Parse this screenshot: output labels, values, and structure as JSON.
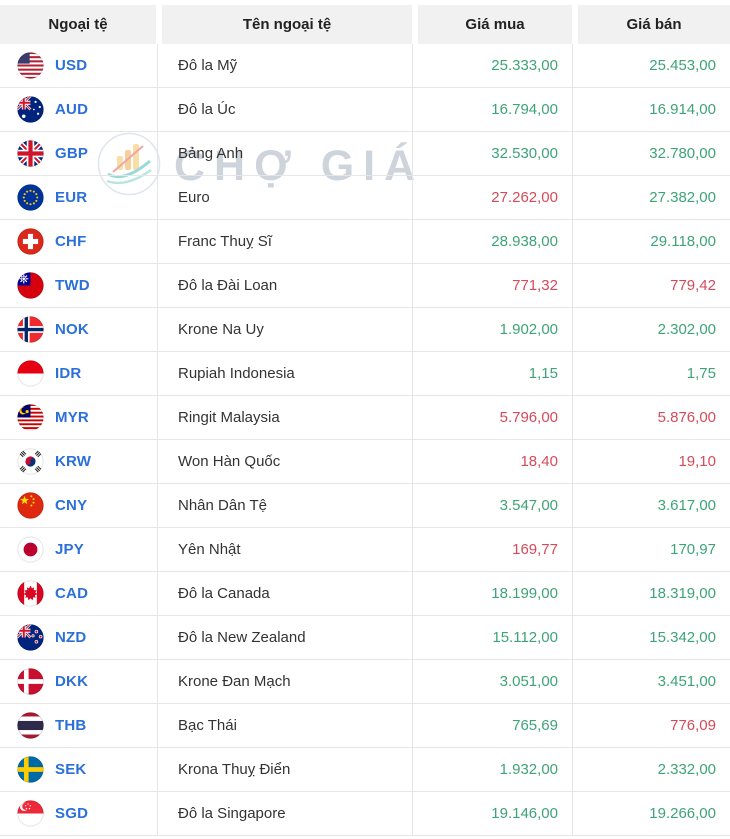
{
  "header": {
    "columns": [
      "Ngoại tệ",
      "Tên ngoại tệ",
      "Giá mua",
      "Giá bán"
    ]
  },
  "watermark": {
    "text": "CHỢ GIÁ"
  },
  "colors": {
    "price_up": "#3ea378",
    "price_down": "#d64a5a",
    "code_link": "#2b70d9",
    "header_bg": "#f1f1f1",
    "border": "#e6e6e6"
  },
  "rows": [
    {
      "code": "USD",
      "name": "Đô la Mỹ",
      "buy": "25.333,00",
      "buy_trend": "up",
      "sell": "25.453,00",
      "sell_trend": "up"
    },
    {
      "code": "AUD",
      "name": "Đô la Úc",
      "buy": "16.794,00",
      "buy_trend": "up",
      "sell": "16.914,00",
      "sell_trend": "up"
    },
    {
      "code": "GBP",
      "name": "Bảng Anh",
      "buy": "32.530,00",
      "buy_trend": "up",
      "sell": "32.780,00",
      "sell_trend": "up"
    },
    {
      "code": "EUR",
      "name": "Euro",
      "buy": "27.262,00",
      "buy_trend": "down",
      "sell": "27.382,00",
      "sell_trend": "up"
    },
    {
      "code": "CHF",
      "name": "Franc Thuỵ Sĩ",
      "buy": "28.938,00",
      "buy_trend": "up",
      "sell": "29.118,00",
      "sell_trend": "up"
    },
    {
      "code": "TWD",
      "name": "Đô la Đài Loan",
      "buy": "771,32",
      "buy_trend": "down",
      "sell": "779,42",
      "sell_trend": "down"
    },
    {
      "code": "NOK",
      "name": "Krone Na Uy",
      "buy": "1.902,00",
      "buy_trend": "up",
      "sell": "2.302,00",
      "sell_trend": "up"
    },
    {
      "code": "IDR",
      "name": "Rupiah Indonesia",
      "buy": "1,15",
      "buy_trend": "up",
      "sell": "1,75",
      "sell_trend": "up"
    },
    {
      "code": "MYR",
      "name": "Ringit Malaysia",
      "buy": "5.796,00",
      "buy_trend": "down",
      "sell": "5.876,00",
      "sell_trend": "down"
    },
    {
      "code": "KRW",
      "name": "Won Hàn Quốc",
      "buy": "18,40",
      "buy_trend": "down",
      "sell": "19,10",
      "sell_trend": "down"
    },
    {
      "code": "CNY",
      "name": "Nhân Dân Tệ",
      "buy": "3.547,00",
      "buy_trend": "up",
      "sell": "3.617,00",
      "sell_trend": "up"
    },
    {
      "code": "JPY",
      "name": "Yên Nhật",
      "buy": "169,77",
      "buy_trend": "down",
      "sell": "170,97",
      "sell_trend": "up"
    },
    {
      "code": "CAD",
      "name": "Đô la Canada",
      "buy": "18.199,00",
      "buy_trend": "up",
      "sell": "18.319,00",
      "sell_trend": "up"
    },
    {
      "code": "NZD",
      "name": "Đô la New Zealand",
      "buy": "15.112,00",
      "buy_trend": "up",
      "sell": "15.342,00",
      "sell_trend": "up"
    },
    {
      "code": "DKK",
      "name": "Krone Đan Mạch",
      "buy": "3.051,00",
      "buy_trend": "up",
      "sell": "3.451,00",
      "sell_trend": "up"
    },
    {
      "code": "THB",
      "name": "Bạc Thái",
      "buy": "765,69",
      "buy_trend": "up",
      "sell": "776,09",
      "sell_trend": "down"
    },
    {
      "code": "SEK",
      "name": "Krona Thuỵ Điển",
      "buy": "1.932,00",
      "buy_trend": "up",
      "sell": "2.332,00",
      "sell_trend": "up"
    },
    {
      "code": "SGD",
      "name": "Đô la Singapore",
      "buy": "19.146,00",
      "buy_trend": "up",
      "sell": "19.266,00",
      "sell_trend": "up"
    }
  ]
}
